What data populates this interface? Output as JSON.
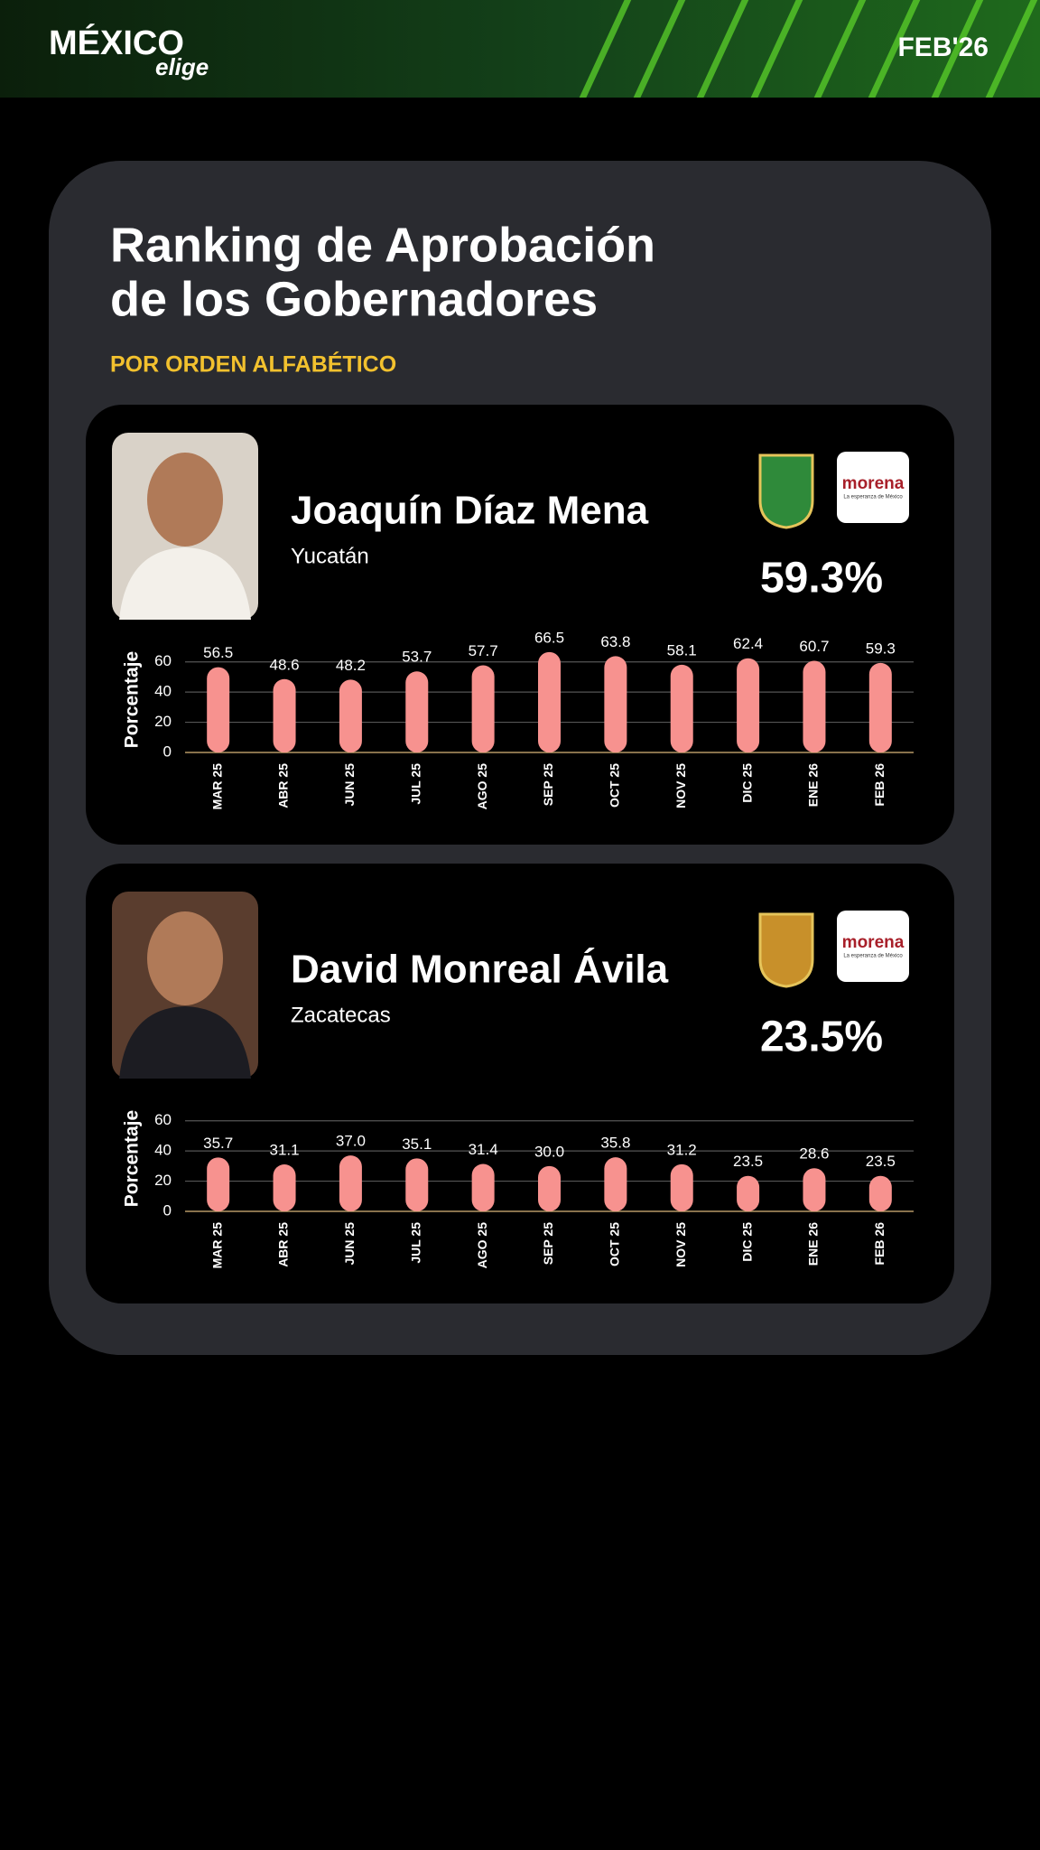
{
  "header": {
    "brand": "MÉXICO",
    "brand_sub": "elige",
    "date": "FEB'26"
  },
  "title_lines": [
    "Ranking de Aprobación",
    "de los Gobernadores"
  ],
  "subtitle": "POR ORDEN ALFABÉTICO",
  "chart_data": [
    {
      "type": "bar",
      "name": "Joaquín Díaz Mena",
      "state": "Yucatán",
      "approval": "59.3%",
      "party": "morena",
      "party_tagline": "La esperanza de México",
      "ylabel": "Porcentaje",
      "color": "#f7928f",
      "categories": [
        "MAR 25",
        "ABR 25",
        "JUN 25",
        "JUL 25",
        "AGO 25",
        "SEP 25",
        "OCT 25",
        "NOV 25",
        "DIC 25",
        "ENE 26",
        "FEB 26"
      ],
      "values": [
        56.5,
        48.6,
        48.2,
        53.7,
        57.7,
        66.5,
        63.8,
        58.1,
        62.4,
        60.7,
        59.3
      ],
      "value_labels": [
        "56.5",
        "48.6",
        "48.2",
        "53.7",
        "57.7",
        "66.5",
        "63.8",
        "58.1",
        "62.4",
        "60.7",
        "59.3"
      ],
      "ylim": [
        0,
        70
      ],
      "yticks": [
        0,
        20,
        40,
        60
      ],
      "grid": true
    },
    {
      "type": "bar",
      "name": "David Monreal Ávila",
      "state": "Zacatecas",
      "approval": "23.5%",
      "party": "morena",
      "party_tagline": "La esperanza de México",
      "ylabel": "Porcentaje",
      "color": "#f7928f",
      "categories": [
        "MAR 25",
        "ABR 25",
        "JUN 25",
        "JUL 25",
        "AGO 25",
        "SEP 25",
        "OCT 25",
        "NOV 25",
        "DIC 25",
        "ENE 26",
        "FEB 26"
      ],
      "values": [
        35.7,
        31.1,
        37.0,
        35.1,
        31.4,
        30.0,
        35.8,
        31.2,
        23.5,
        28.6,
        23.5
      ],
      "value_labels": [
        "35.7",
        "31.1",
        "37.0",
        "35.1",
        "31.4",
        "30.0",
        "35.8",
        "31.2",
        "23.5",
        "28.6",
        "23.5"
      ],
      "ylim": [
        0,
        70
      ],
      "yticks": [
        0,
        20,
        40,
        60
      ],
      "grid": true
    }
  ]
}
